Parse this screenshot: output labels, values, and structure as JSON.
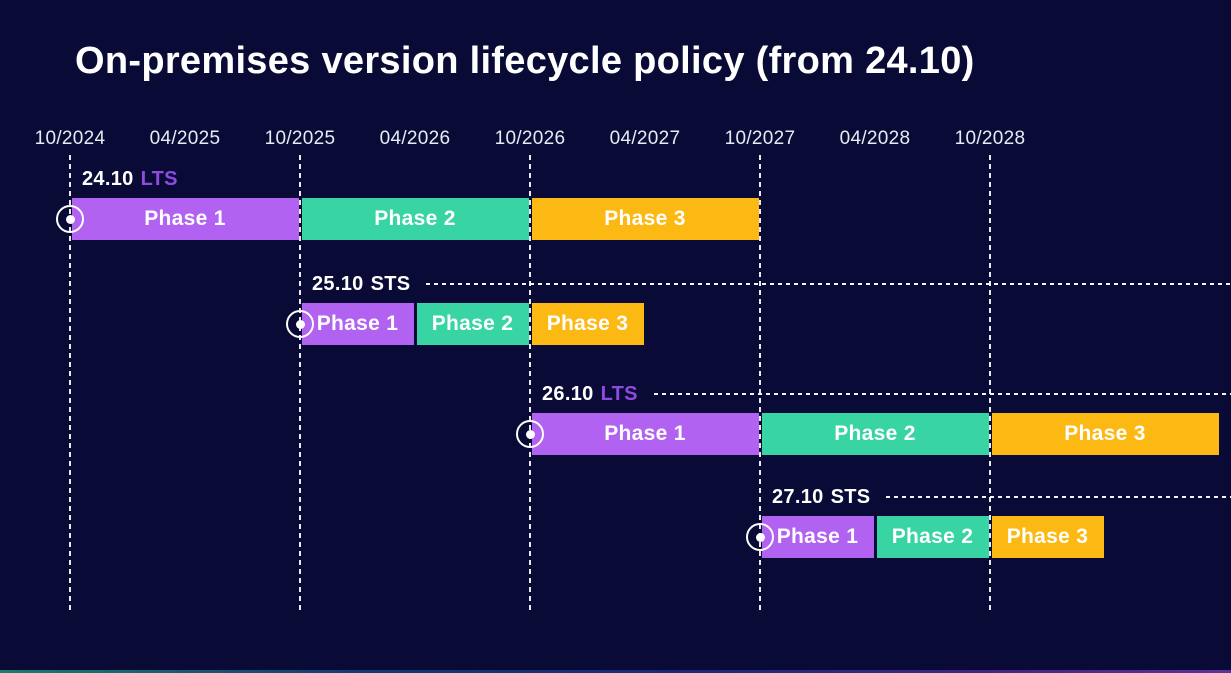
{
  "title": "On-premises version lifecycle policy (from 24.10)",
  "colors": {
    "background": "#090b36",
    "phase1": "#b262f0",
    "phase2": "#38d4a4",
    "phase3": "#fdb913",
    "lts_text": "#8f4ae0",
    "sts_text": "#ffffff",
    "axis_text": "#e9eaf4",
    "dashed_line": "#ffffff"
  },
  "chart_data": {
    "type": "bar",
    "subtype": "gantt-timeline",
    "title": "On-premises version lifecycle policy (from 24.10)",
    "xlabel": "",
    "ylabel": "",
    "x_tick_labels": [
      "10/2024",
      "04/2025",
      "10/2025",
      "04/2026",
      "10/2026",
      "04/2027",
      "10/2027",
      "04/2028",
      "10/2028"
    ],
    "gridlines_at": [
      "10/2024",
      "10/2025",
      "10/2026",
      "10/2027",
      "10/2028"
    ],
    "grid": "vertical-dashed",
    "legend": "none",
    "series": [
      {
        "name": "24.10 LTS",
        "version": "24.10",
        "channel": "LTS",
        "release_marker": "10/2024",
        "guide_line": false,
        "phases": [
          {
            "label": "Phase 1",
            "start": "10/2024",
            "end": "10/2025",
            "color_key": "phase1"
          },
          {
            "label": "Phase 2",
            "start": "10/2025",
            "end": "10/2026",
            "color_key": "phase2"
          },
          {
            "label": "Phase 3",
            "start": "10/2026",
            "end": "10/2027",
            "color_key": "phase3"
          }
        ]
      },
      {
        "name": "25.10 STS",
        "version": "25.10",
        "channel": "STS",
        "release_marker": "10/2025",
        "guide_line": true,
        "phases": [
          {
            "label": "Phase 1",
            "start": "10/2025",
            "end": "04/2026",
            "color_key": "phase1"
          },
          {
            "label": "Phase 2",
            "start": "04/2026",
            "end": "10/2026",
            "color_key": "phase2"
          },
          {
            "label": "Phase 3",
            "start": "10/2026",
            "end": "04/2027",
            "color_key": "phase3"
          }
        ]
      },
      {
        "name": "26.10 LTS",
        "version": "26.10",
        "channel": "LTS",
        "release_marker": "10/2026",
        "guide_line": true,
        "phases": [
          {
            "label": "Phase 1",
            "start": "10/2026",
            "end": "10/2027",
            "color_key": "phase1"
          },
          {
            "label": "Phase 2",
            "start": "10/2027",
            "end": "10/2028",
            "color_key": "phase2"
          },
          {
            "label": "Phase 3",
            "start": "10/2028",
            "end": "10/2029",
            "color_key": "phase3"
          }
        ]
      },
      {
        "name": "27.10 STS",
        "version": "27.10",
        "channel": "STS",
        "release_marker": "10/2027",
        "guide_line": true,
        "phases": [
          {
            "label": "Phase 1",
            "start": "10/2027",
            "end": "04/2028",
            "color_key": "phase1"
          },
          {
            "label": "Phase 2",
            "start": "04/2028",
            "end": "10/2028",
            "color_key": "phase2"
          },
          {
            "label": "Phase 3",
            "start": "10/2028",
            "end": "04/2029",
            "color_key": "phase3"
          }
        ]
      }
    ]
  }
}
